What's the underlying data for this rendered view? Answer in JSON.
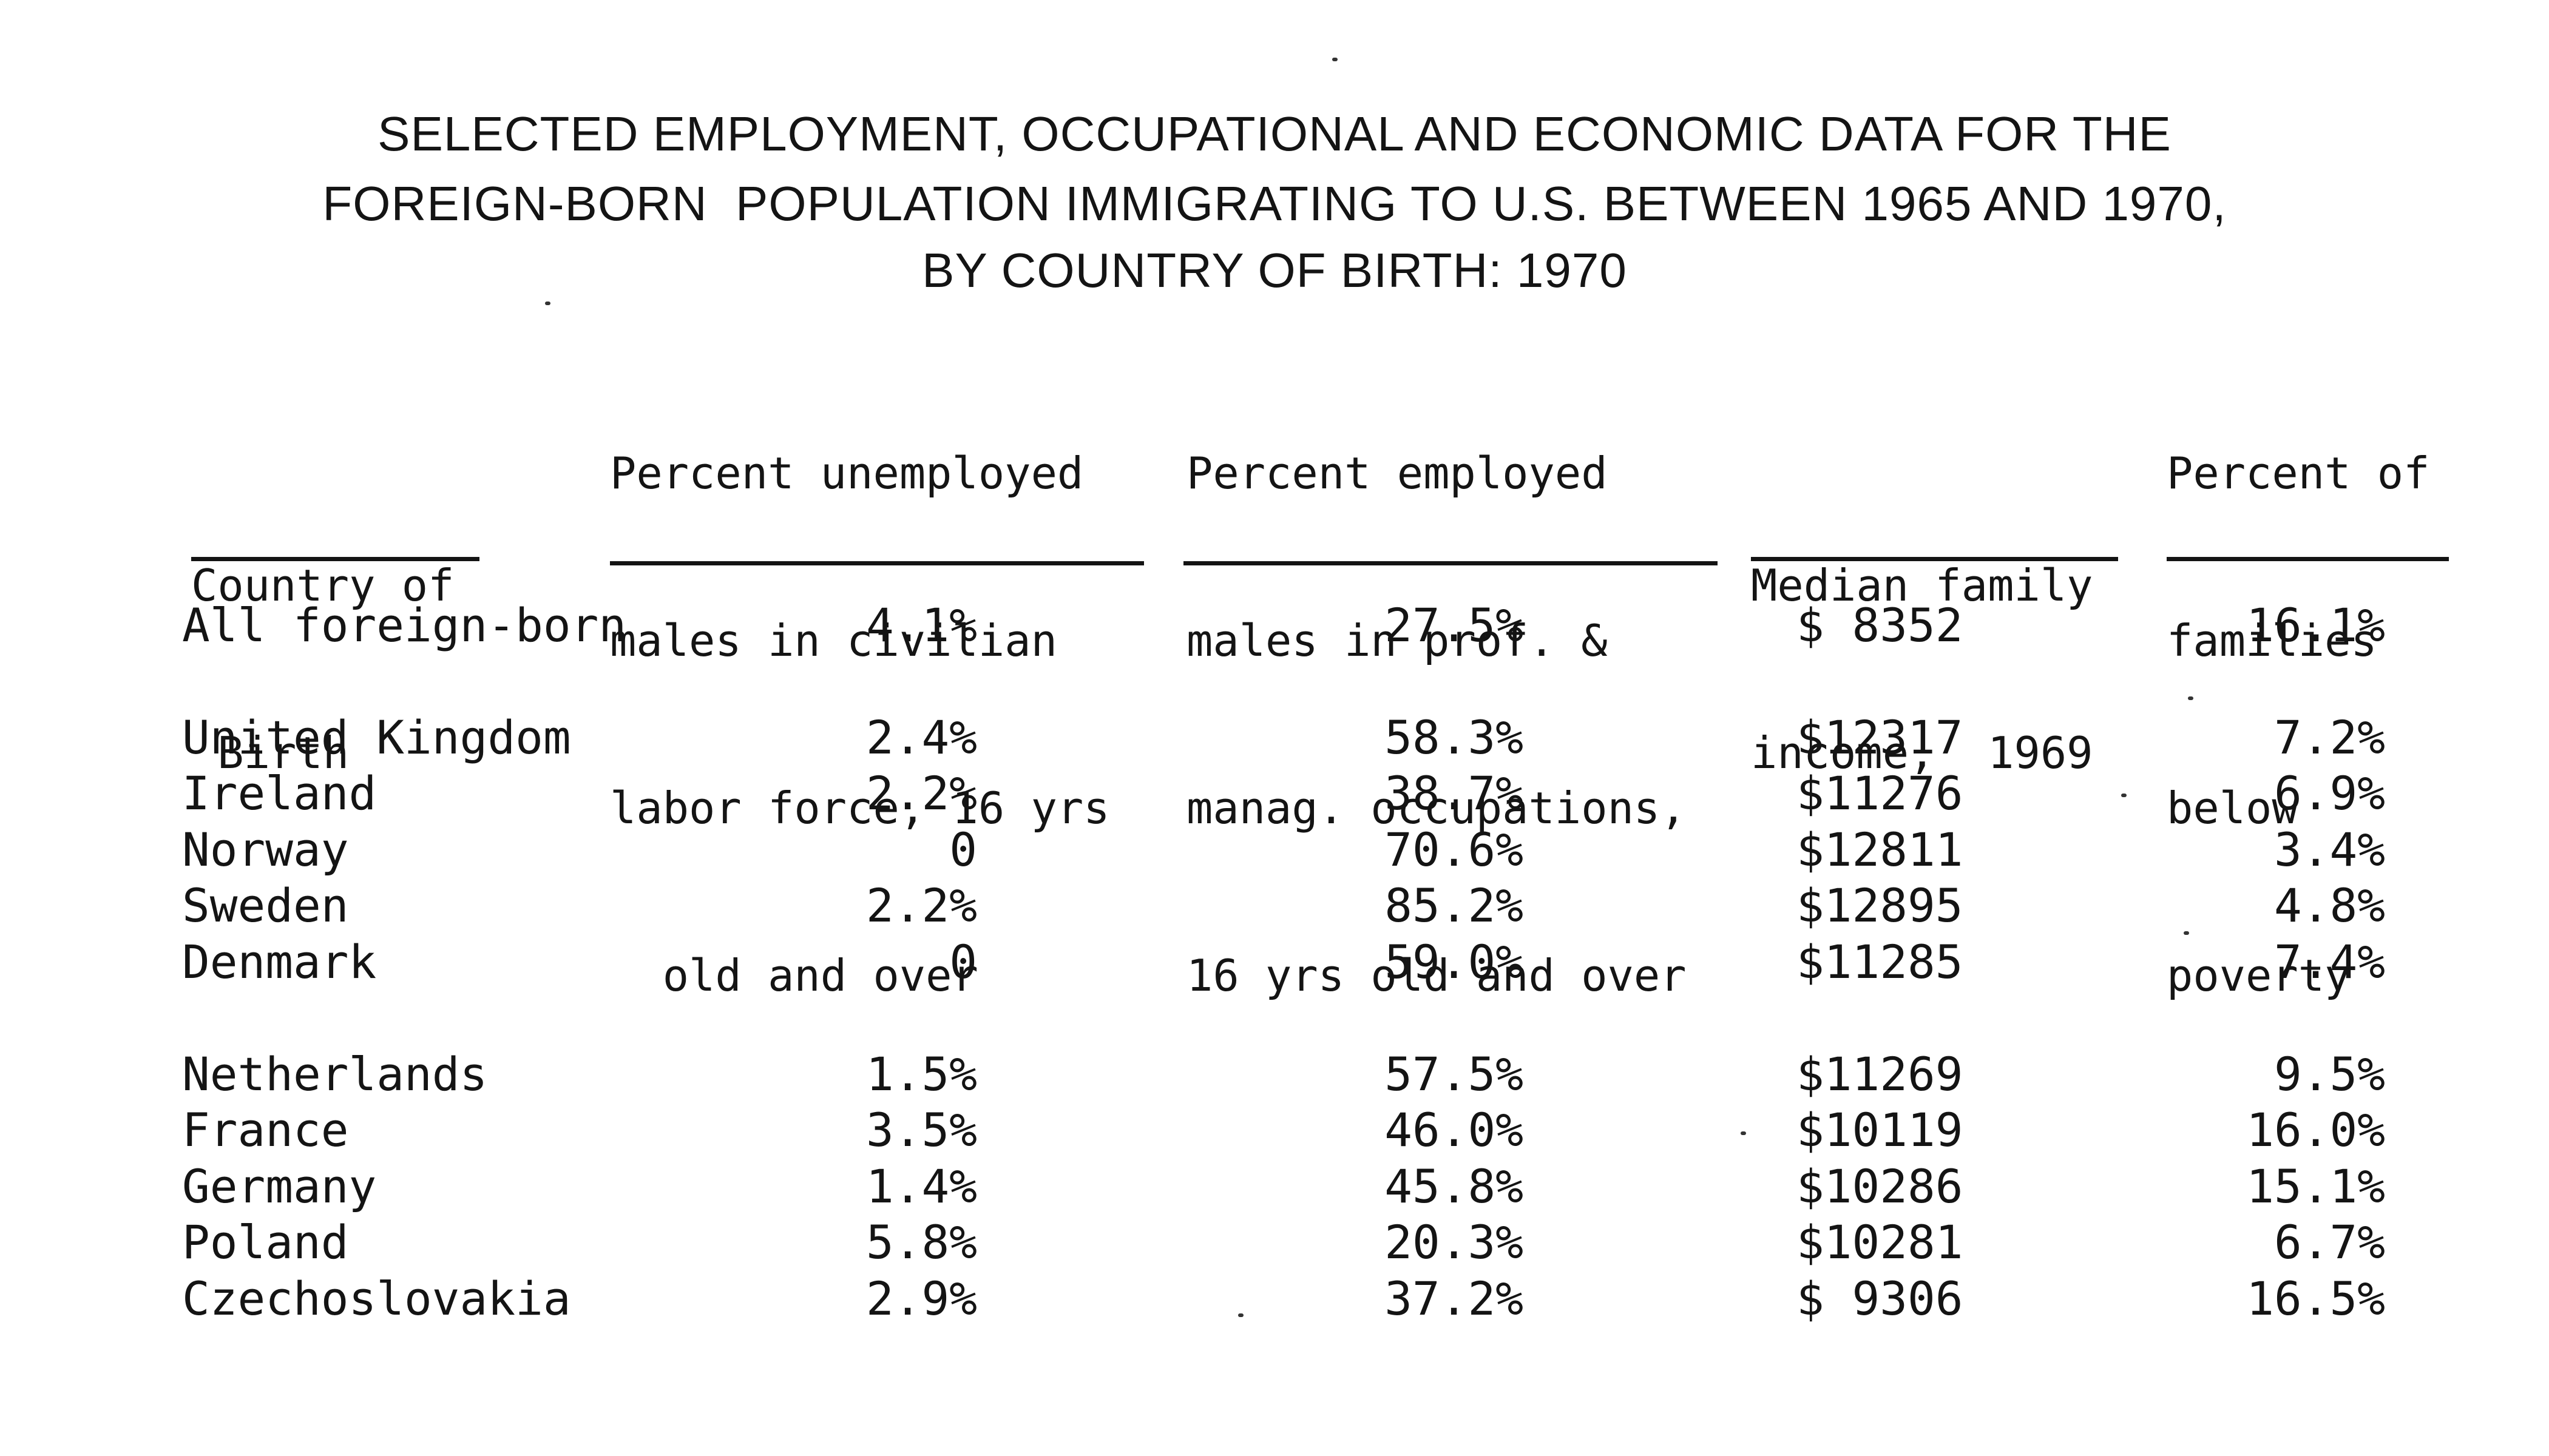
{
  "title": {
    "line1": "SELECTED EMPLOYMENT, OCCUPATIONAL AND ECONOMIC DATA FOR THE",
    "line2": "FOREIGN-BORN  POPULATION IMMIGRATING TO U.S. BETWEEN 1965 AND 1970,",
    "line3": "BY COUNTRY OF BIRTH: 1970"
  },
  "headers": {
    "country": [
      "Country of",
      " Birth"
    ],
    "unemployed": [
      "Percent unemployed",
      "males in civilian",
      "labor force, 16 yrs",
      "  old and over"
    ],
    "employed": [
      "Percent employed",
      "males in prof. &",
      "manag. occupations,",
      "16 yrs old and over"
    ],
    "income": [
      "Median family",
      "income,  1969"
    ],
    "poverty": [
      "Percent of",
      "families",
      "below",
      "poverty"
    ]
  },
  "rows": [
    {
      "country": "All foreign-born",
      "unemployed": "4.1%",
      "employed": "27.5%",
      "income": "$ 8352",
      "poverty": "16.1%"
    },
    {
      "country": "United Kingdom",
      "unemployed": "2.4%",
      "employed": "58.3%",
      "income": "$12317",
      "poverty": "7.2%"
    },
    {
      "country": "Ireland",
      "unemployed": "2.2%",
      "employed": "38.7%",
      "income": "$11276",
      "poverty": "6.9%"
    },
    {
      "country": "Norway",
      "unemployed": "0",
      "employed": "70.6%",
      "income": "$12811",
      "poverty": "3.4%"
    },
    {
      "country": "Sweden",
      "unemployed": "2.2%",
      "employed": "85.2%",
      "income": "$12895",
      "poverty": "4.8%"
    },
    {
      "country": "Denmark",
      "unemployed": "0",
      "employed": "59.0%",
      "income": "$11285",
      "poverty": "7.4%"
    },
    {
      "country": "Netherlands",
      "unemployed": "1.5%",
      "employed": "57.5%",
      "income": "$11269",
      "poverty": "9.5%"
    },
    {
      "country": "France",
      "unemployed": "3.5%",
      "employed": "46.0%",
      "income": "$10119",
      "poverty": "16.0%"
    },
    {
      "country": "Germany",
      "unemployed": "1.4%",
      "employed": "45.8%",
      "income": "$10286",
      "poverty": "15.1%"
    },
    {
      "country": "Poland",
      "unemployed": "5.8%",
      "employed": "20.3%",
      "income": "$10281",
      "poverty": "6.7%"
    },
    {
      "country": "Czechoslovakia",
      "unemployed": "2.9%",
      "employed": "37.2%",
      "income": "$ 9306",
      "poverty": "16.5%"
    }
  ]
}
